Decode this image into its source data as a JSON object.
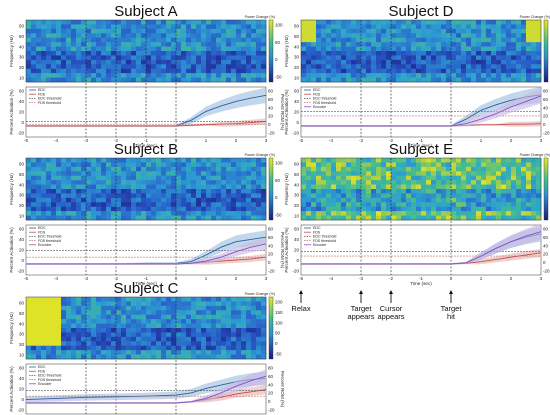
{
  "figure": {
    "time_ticks": [
      "-5",
      "-4",
      "-3",
      "-2",
      "-1",
      "0",
      "1",
      "2",
      "3"
    ],
    "time_label": "Time (sec)",
    "freq_label": "Frequency (Hz)",
    "freq_ticks": [
      "60",
      "50",
      "40",
      "30",
      "20",
      "10"
    ],
    "cbar_title": "Power Change (%)",
    "cbar_ticks": [
      "100",
      "50",
      "0",
      "-50"
    ],
    "cbar_ticks_b": [
      "200",
      "150",
      "100",
      "50",
      "0",
      "-50"
    ],
    "act_label": "Percent Activation (%)",
    "rom_label": "Percent ROM (%)",
    "act_ticks": [
      "60",
      "40",
      "20",
      "0",
      "-20"
    ],
    "rom_ticks": [
      "80",
      "60",
      "40",
      "20",
      "0",
      "-20"
    ],
    "legend": [
      "EDC",
      "FDS",
      "EDC threshold",
      "FDS threshold",
      "Encoder"
    ],
    "events": [
      {
        "label": "Relax",
        "x": -5.0
      },
      {
        "label": "Target appears",
        "x": -3.0
      },
      {
        "label": "Cursor appears",
        "x": -2.0
      },
      {
        "label": "Target hit",
        "x": 0.0
      }
    ]
  },
  "chart_data": [
    {
      "type": "line",
      "title": "Subject A",
      "xlabel": "Time (sec)",
      "ylabel": "Percent Activation (%)",
      "xlim": [
        -5,
        3
      ],
      "ylim": [
        -20,
        70
      ],
      "event_lines": [
        -3,
        -2,
        -1,
        0
      ],
      "series": [
        {
          "name": "EDC",
          "x": [
            -5,
            -4,
            -3,
            -2,
            -1,
            0,
            0.5,
            1,
            1.5,
            2,
            2.5,
            3
          ],
          "values": [
            0,
            0,
            0,
            0,
            0,
            0,
            10,
            26,
            36,
            44,
            50,
            55
          ]
        },
        {
          "name": "FDS",
          "x": [
            -5,
            -4,
            -3,
            -2,
            -1,
            0,
            0.5,
            1,
            1.5,
            2,
            2.5,
            3
          ],
          "values": [
            0,
            0,
            0,
            0,
            0,
            0,
            1,
            2,
            3,
            4,
            6,
            8
          ]
        },
        {
          "name": "EDC threshold",
          "x": [
            -5,
            3
          ],
          "values": [
            8,
            8
          ]
        },
        {
          "name": "FDS threshold",
          "x": [
            -5,
            3
          ],
          "values": [
            3,
            3
          ]
        }
      ]
    },
    {
      "type": "line",
      "title": "Subject D",
      "xlabel": "Time (sec)",
      "ylabel": "Percent Activation (%)",
      "xlim": [
        -5,
        3
      ],
      "ylim": [
        -20,
        70
      ],
      "event_lines": [
        -3,
        -2,
        0
      ],
      "series": [
        {
          "name": "EDC",
          "x": [
            -5,
            -4,
            -3,
            -2,
            -1,
            0,
            0.5,
            1,
            1.5,
            2,
            2.5,
            3
          ],
          "values": [
            0,
            0,
            0,
            0,
            0,
            0,
            12,
            28,
            38,
            46,
            52,
            56
          ]
        },
        {
          "name": "FDS",
          "x": [
            -5,
            -4,
            -3,
            -2,
            -1,
            0,
            0.5,
            1,
            1.5,
            2,
            2.5,
            3
          ],
          "values": [
            0,
            0,
            0,
            0,
            0,
            0,
            1,
            2,
            2,
            3,
            3,
            4
          ]
        },
        {
          "name": "EDC threshold",
          "x": [
            -5,
            3
          ],
          "values": [
            26,
            26
          ]
        },
        {
          "name": "FDS threshold",
          "x": [
            -5,
            3
          ],
          "values": [
            18,
            18
          ]
        },
        {
          "name": "Encoder",
          "x": [
            -5,
            -4,
            -3,
            -2,
            -1,
            0,
            0.5,
            1,
            1.5,
            2,
            2.5,
            3
          ],
          "values": [
            0,
            0,
            0,
            0,
            0,
            0,
            4,
            12,
            22,
            34,
            44,
            54
          ]
        }
      ]
    },
    {
      "type": "line",
      "title": "Subject B",
      "xlabel": "Time (sec)",
      "ylabel": "Percent Activation (%)",
      "xlim": [
        -5,
        3
      ],
      "ylim": [
        -20,
        70
      ],
      "event_lines": [
        -3,
        -2,
        0
      ],
      "series": [
        {
          "name": "EDC",
          "x": [
            -5,
            -4,
            -3,
            -2,
            -1,
            0,
            0.5,
            1,
            1.5,
            2,
            2.5,
            3
          ],
          "values": [
            0,
            0,
            0,
            0,
            1,
            1,
            4,
            16,
            30,
            40,
            44,
            48
          ]
        },
        {
          "name": "FDS",
          "x": [
            -5,
            -4,
            -3,
            -2,
            -1,
            0,
            0.5,
            1,
            1.5,
            2,
            2.5,
            3
          ],
          "values": [
            0,
            0,
            0,
            0,
            0,
            0,
            1,
            3,
            5,
            7,
            9,
            12
          ]
        },
        {
          "name": "EDC threshold",
          "x": [
            -5,
            3
          ],
          "values": [
            24,
            24
          ]
        },
        {
          "name": "FDS threshold",
          "x": [
            -5,
            3
          ],
          "values": [
            12,
            12
          ]
        },
        {
          "name": "Encoder",
          "x": [
            -5,
            -4,
            -3,
            -2,
            -1,
            0,
            0.5,
            1,
            1.5,
            2,
            2.5,
            3
          ],
          "values": [
            0,
            0,
            0,
            0,
            0,
            0,
            1,
            5,
            12,
            22,
            30,
            36
          ]
        }
      ]
    },
    {
      "type": "line",
      "title": "Subject E",
      "xlabel": "Time (sec)",
      "ylabel": "Percent Activation (%)",
      "xlim": [
        -5,
        3
      ],
      "ylim": [
        -20,
        70
      ],
      "event_lines": [
        -3,
        -2,
        0
      ],
      "series": [
        {
          "name": "EDC",
          "x": [
            -5,
            -4,
            -3,
            -2,
            -1,
            0,
            0.5,
            1,
            1.5,
            2,
            2.5,
            3
          ],
          "values": [
            0,
            0,
            0,
            0,
            0,
            0,
            2,
            14,
            28,
            40,
            48,
            54
          ]
        },
        {
          "name": "FDS",
          "x": [
            -5,
            -4,
            -3,
            -2,
            -1,
            0,
            0.5,
            1,
            1.5,
            2,
            2.5,
            3
          ],
          "values": [
            0,
            0,
            0,
            0,
            0,
            0,
            1,
            4,
            8,
            12,
            16,
            20
          ]
        },
        {
          "name": "EDC threshold",
          "x": [
            -5,
            3
          ],
          "values": [
            22,
            22
          ]
        },
        {
          "name": "FDS threshold",
          "x": [
            -5,
            3
          ],
          "values": [
            14,
            14
          ]
        },
        {
          "name": "Encoder",
          "x": [
            -5,
            -4,
            -3,
            -2,
            -1,
            0,
            0.5,
            1,
            1.5,
            2,
            2.5,
            3
          ],
          "values": [
            0,
            0,
            0,
            0,
            0,
            0,
            2,
            14,
            28,
            40,
            50,
            58
          ]
        }
      ]
    },
    {
      "type": "line",
      "title": "Subject C",
      "xlabel": "Time (sec)",
      "ylabel": "Percent Activation (%)",
      "xlim": [
        -5,
        3
      ],
      "ylim": [
        -20,
        70
      ],
      "event_lines": [
        -3,
        -2,
        0
      ],
      "series": [
        {
          "name": "EDC",
          "x": [
            -5,
            -4,
            -3,
            -2,
            -1,
            0,
            0.5,
            1,
            1.5,
            2,
            2.5,
            3
          ],
          "values": [
            6,
            8,
            10,
            11,
            12,
            14,
            18,
            26,
            32,
            38,
            42,
            44
          ]
        },
        {
          "name": "FDS",
          "x": [
            -5,
            -4,
            -3,
            -2,
            -1,
            0,
            0.5,
            1,
            1.5,
            2,
            2.5,
            3
          ],
          "values": [
            0,
            0,
            0,
            0,
            0,
            0,
            2,
            6,
            10,
            16,
            20,
            24
          ]
        },
        {
          "name": "EDC threshold",
          "x": [
            -5,
            3
          ],
          "values": [
            22,
            22
          ]
        },
        {
          "name": "FDS threshold",
          "x": [
            -5,
            3
          ],
          "values": [
            12,
            12
          ]
        },
        {
          "name": "Encoder",
          "x": [
            -5,
            -4,
            -3,
            -2,
            -1,
            0,
            0.5,
            1,
            1.5,
            2,
            2.5,
            3
          ],
          "values": [
            0,
            0,
            0,
            0,
            0,
            0,
            2,
            8,
            18,
            30,
            40,
            48
          ]
        }
      ]
    }
  ]
}
